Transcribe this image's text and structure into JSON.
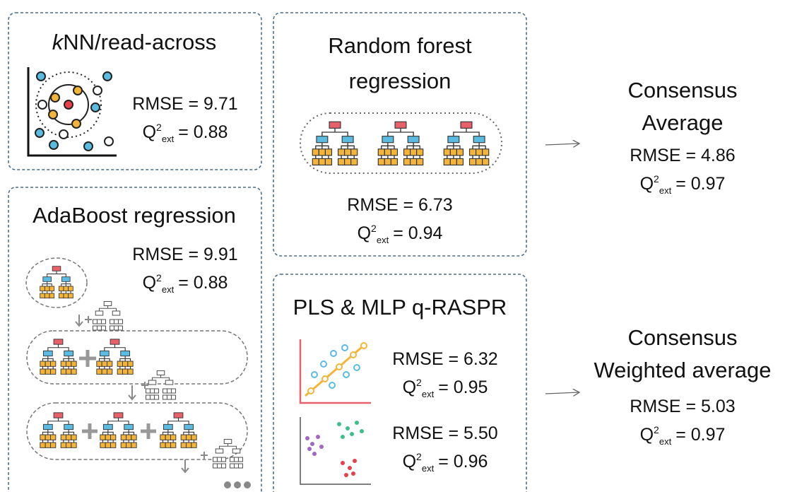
{
  "panels": [
    {
      "title_italic": "k",
      "title": "NN/read-across",
      "metrics": [
        {
          "rmse": "RMSE = 9.71",
          "q2": {
            "symbol": "Q",
            "sup": "2",
            "sub": "ext",
            "value": "= 0.88"
          }
        }
      ]
    },
    {
      "title": "AdaBoost regression",
      "metrics": [
        {
          "rmse": "RMSE = 9.91",
          "q2": {
            "symbol": "Q",
            "sup": "2",
            "sub": "ext",
            "value": "= 0.88"
          }
        }
      ]
    },
    {
      "title": [
        "Random forest",
        "regression"
      ],
      "metrics": [
        {
          "rmse": "RMSE = 6.73",
          "q2": {
            "symbol": "Q",
            "sup": "2",
            "sub": "ext",
            "value": "= 0.94"
          }
        }
      ]
    },
    {
      "title": "PLS & MLP q-RASPR",
      "metrics": [
        {
          "rmse": "RMSE = 6.32",
          "q2": {
            "symbol": "Q",
            "sup": "2",
            "sub": "ext",
            "value": "= 0.95"
          }
        },
        {
          "rmse": "RMSE = 5.50",
          "q2": {
            "symbol": "Q",
            "sup": "2",
            "sub": "ext",
            "value": "= 0.96"
          }
        }
      ]
    }
  ],
  "consensus": [
    {
      "title": [
        "Consensus",
        "Average"
      ],
      "metrics": [
        {
          "rmse": "RMSE = 4.86",
          "q2": {
            "symbol": "Q",
            "sup": "2",
            "sub": "ext",
            "value": "= 0.97"
          }
        }
      ]
    },
    {
      "title": [
        "Consensus",
        "Weighted average"
      ],
      "metrics": [
        {
          "rmse": "RMSE = 5.03",
          "q2": {
            "symbol": "Q",
            "sup": "2",
            "sub": "ext",
            "value": "= 0.97"
          }
        }
      ]
    }
  ]
}
